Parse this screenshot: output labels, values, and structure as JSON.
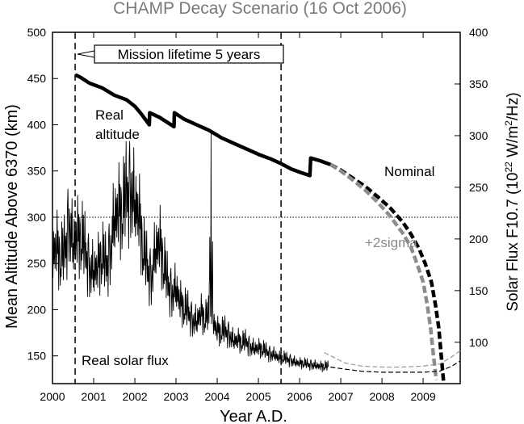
{
  "chart_data": {
    "type": "line",
    "title": "CHAMP Decay Scenario (16 Oct 2006)",
    "xlabel": "Year A.D.",
    "ylabel_left": "Mean Altitude Above 6370 (km)",
    "ylabel_right_parts": [
      "Solar Flux F10.7 (10",
      "22",
      " W/m",
      "2",
      "/Hz)"
    ],
    "xlim": [
      2000,
      2009.9
    ],
    "ylim_left": [
      120,
      500
    ],
    "ylim_right": [
      60,
      400
    ],
    "x_ticks": [
      2000,
      2001,
      2002,
      2003,
      2004,
      2005,
      2006,
      2007,
      2008,
      2009
    ],
    "x_tick_labels": [
      "2000",
      "2001",
      "2002",
      "2003",
      "2004",
      "2005",
      "2006",
      "2007",
      "2008",
      "2009"
    ],
    "y_left_ticks": [
      150,
      200,
      250,
      300,
      350,
      400,
      450,
      500
    ],
    "y_left_tick_labels": [
      "150",
      "200",
      "250",
      "300",
      "350",
      "400",
      "450",
      "500"
    ],
    "y_right_ticks": [
      100,
      150,
      200,
      250,
      300,
      350,
      400
    ],
    "y_right_tick_labels": [
      "100",
      "150",
      "200",
      "250",
      "300",
      "350",
      "400"
    ],
    "mission_lines": [
      2000.55,
      2005.55
    ],
    "reference_altitude": 300,
    "mission_label": "Mission lifetime 5 years",
    "annotations": {
      "real_altitude_line1": "Real",
      "real_altitude_line2": "altitude",
      "nominal": "Nominal",
      "two_sigma": "+2sigma",
      "real_solar_flux": "Real solar flux"
    },
    "series": [
      {
        "name": "Real altitude",
        "axis": "left",
        "style": "solid-black-thick",
        "x": [
          2000.55,
          2000.65,
          2000.9,
          2001.2,
          2001.5,
          2001.8,
          2002.0,
          2002.15,
          2002.35,
          2002.36,
          2002.6,
          2002.95,
          2002.96,
          2003.2,
          2003.5,
          2003.8,
          2004.1,
          2004.4,
          2004.7,
          2005.0,
          2005.3,
          2005.55,
          2005.8,
          2006.05,
          2006.25,
          2006.27,
          2006.5,
          2006.75
        ],
        "y": [
          454,
          452,
          445,
          440,
          432,
          427,
          420,
          412,
          400,
          413,
          408,
          398,
          413,
          406,
          400,
          394,
          386,
          380,
          374,
          368,
          363,
          358,
          352,
          348,
          345,
          364,
          361,
          357
        ]
      },
      {
        "name": "Nominal",
        "axis": "left",
        "style": "dashed-black-thick",
        "x": [
          2006.75,
          2007.0,
          2007.3,
          2007.6,
          2007.9,
          2008.2,
          2008.5,
          2008.7,
          2008.9,
          2009.05,
          2009.2,
          2009.3,
          2009.38,
          2009.43,
          2009.47,
          2009.5
        ],
        "y": [
          357,
          351,
          342,
          333,
          322,
          310,
          295,
          282,
          266,
          250,
          230,
          205,
          180,
          155,
          135,
          120
        ]
      },
      {
        "name": "+2sigma",
        "axis": "left",
        "style": "dashed-gray-thick",
        "x": [
          2006.75,
          2007.0,
          2007.3,
          2007.6,
          2007.9,
          2008.2,
          2008.5,
          2008.7,
          2008.85,
          2009.0,
          2009.1,
          2009.18,
          2009.24,
          2009.29,
          2009.32
        ],
        "y": [
          357,
          350,
          340,
          329,
          316,
          301,
          283,
          268,
          250,
          230,
          205,
          180,
          155,
          135,
          124
        ]
      },
      {
        "name": "Real solar flux",
        "axis": "right",
        "style": "solid-black-thin",
        "noise": [
          0.17,
          -0.42,
          0.81,
          -0.08,
          0.35,
          -0.73,
          0.58,
          0.12,
          -0.55,
          0.94,
          -0.21,
          0.44,
          -0.9,
          0.27,
          0.66,
          -0.36,
          0.03,
          -0.62,
          0.71,
          -0.14,
          0.49,
          -0.81,
          0.22,
          0.88,
          -0.47,
          0.09,
          -0.29,
          0.55,
          -0.68,
          0.38,
          0.77,
          -0.05,
          -0.93,
          0.31,
          0.14,
          -0.39,
          0.62,
          -0.24,
          0.85,
          -0.58
        ],
        "x": [
          2000.0,
          2000.1,
          2000.2,
          2000.3,
          2000.4,
          2000.5,
          2000.6,
          2000.7,
          2000.8,
          2000.9,
          2001.0,
          2001.1,
          2001.2,
          2001.3,
          2001.4,
          2001.5,
          2001.6,
          2001.7,
          2001.8,
          2001.9,
          2002.0,
          2002.1,
          2002.2,
          2002.3,
          2002.4,
          2002.5,
          2002.6,
          2002.7,
          2002.8,
          2002.9,
          2003.0,
          2003.1,
          2003.2,
          2003.3,
          2003.4,
          2003.5,
          2003.6,
          2003.7,
          2003.8,
          2003.85,
          2003.9,
          2004.0,
          2004.1,
          2004.2,
          2004.3,
          2004.4,
          2004.5,
          2004.6,
          2004.7,
          2004.8,
          2004.9,
          2005.0,
          2005.1,
          2005.2,
          2005.3,
          2005.4,
          2005.5,
          2005.6,
          2005.7,
          2005.8,
          2005.9,
          2006.0,
          2006.1,
          2006.2,
          2006.3,
          2006.4,
          2006.5,
          2006.6,
          2006.7
        ],
        "y": [
          180,
          195,
          175,
          185,
          215,
          190,
          205,
          195,
          185,
          170,
          165,
          175,
          180,
          170,
          185,
          215,
          230,
          220,
          240,
          245,
          230,
          225,
          185,
          170,
          160,
          185,
          200,
          170,
          155,
          145,
          150,
          140,
          130,
          128,
          120,
          118,
          130,
          120,
          125,
          304,
          118,
          112,
          108,
          110,
          106,
          100,
          103,
          98,
          100,
          95,
          93,
          95,
          92,
          90,
          88,
          87,
          85,
          84,
          83,
          82,
          80,
          80,
          79,
          78,
          78,
          77,
          77,
          76,
          76
        ]
      },
      {
        "name": "Flux forecast nominal",
        "axis": "right",
        "style": "dashed-black-thin",
        "x": [
          2006.75,
          2007.1,
          2007.5,
          2008.0,
          2008.5,
          2009.0,
          2009.4,
          2009.7,
          2009.9
        ],
        "y": [
          76,
          74,
          72,
          71,
          71,
          71,
          72,
          77,
          82
        ]
      },
      {
        "name": "Flux forecast +2sigma",
        "axis": "right",
        "style": "dashed-gray-thin",
        "x": [
          2006.6,
          2006.8,
          2007.1,
          2007.5,
          2008.0,
          2008.5,
          2009.0,
          2009.4,
          2009.7,
          2009.9
        ],
        "y": [
          90,
          86,
          80,
          77,
          76,
          76,
          77,
          79,
          86,
          92
        ]
      }
    ]
  }
}
